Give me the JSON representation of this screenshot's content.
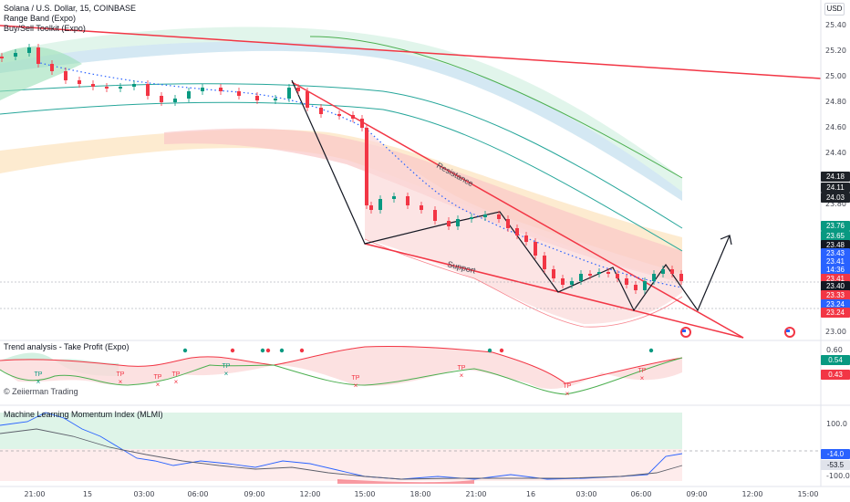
{
  "header": {
    "symbol_line": "Solana / U.S. Dollar, 15, COINBASE",
    "indicator_1": "Range Band (Expo)",
    "indicator_2": "Buy/Sell Toolkit (Expo)"
  },
  "currency": "USD",
  "main_axis_labels": [
    "25.40",
    "25.20",
    "25.00",
    "24.80",
    "24.60",
    "24.40",
    "24.20",
    "23.80",
    "23.60",
    "23.40",
    "23.20",
    "23.00"
  ],
  "price_tags": [
    {
      "text": "24.18",
      "color": "#1e2228"
    },
    {
      "text": "24.11",
      "color": "#1e2228"
    },
    {
      "text": "24.03",
      "color": "#1e2228"
    },
    {
      "text": "23.76",
      "color": "#089981"
    },
    {
      "text": "23.65",
      "color": "#089981"
    },
    {
      "text": "23.48",
      "color": "#131722"
    },
    {
      "text": "23.43",
      "color": "#2962ff"
    },
    {
      "text": "23.41",
      "color": "#2962ff"
    },
    {
      "text": "14:36",
      "color": "#2962ff"
    },
    {
      "text": "23.41",
      "color": "#f23645"
    },
    {
      "text": "23.40",
      "color": "#131722"
    },
    {
      "text": "23.33",
      "color": "#f23645"
    },
    {
      "text": "23.24",
      "color": "#2962ff"
    },
    {
      "text": "23.24",
      "color": "#f23645"
    }
  ],
  "drawing_labels": {
    "resistance": "Resistance",
    "support": "Support"
  },
  "trend_pane": {
    "title": "Trend analysis - Take Profit (Expo)",
    "axis_labels": [
      "0.60",
      "0.40"
    ],
    "value_tags": [
      {
        "text": "0.54",
        "color": "#089981"
      },
      {
        "text": "0.43",
        "color": "#f23645"
      }
    ],
    "tp_label": "TP",
    "watermark": "© Zeiierman Trading"
  },
  "mlmi_pane": {
    "title": "Machine Learning Momentum Index (MLMI)",
    "axis_labels": [
      "100.0",
      "-100.0"
    ],
    "value_tags": [
      {
        "text": "-14.0",
        "color": "#2962ff"
      },
      {
        "text": "-53.5",
        "color": "#e0e3eb"
      }
    ]
  },
  "time_axis": [
    "21:00",
    "15",
    "03:00",
    "06:00",
    "09:00",
    "12:00",
    "15:00",
    "18:00",
    "21:00",
    "16",
    "03:00",
    "06:00",
    "09:00",
    "12:00",
    "15:00"
  ],
  "colors": {
    "up": "#089981",
    "down": "#f23645",
    "accent": "#2962ff"
  }
}
